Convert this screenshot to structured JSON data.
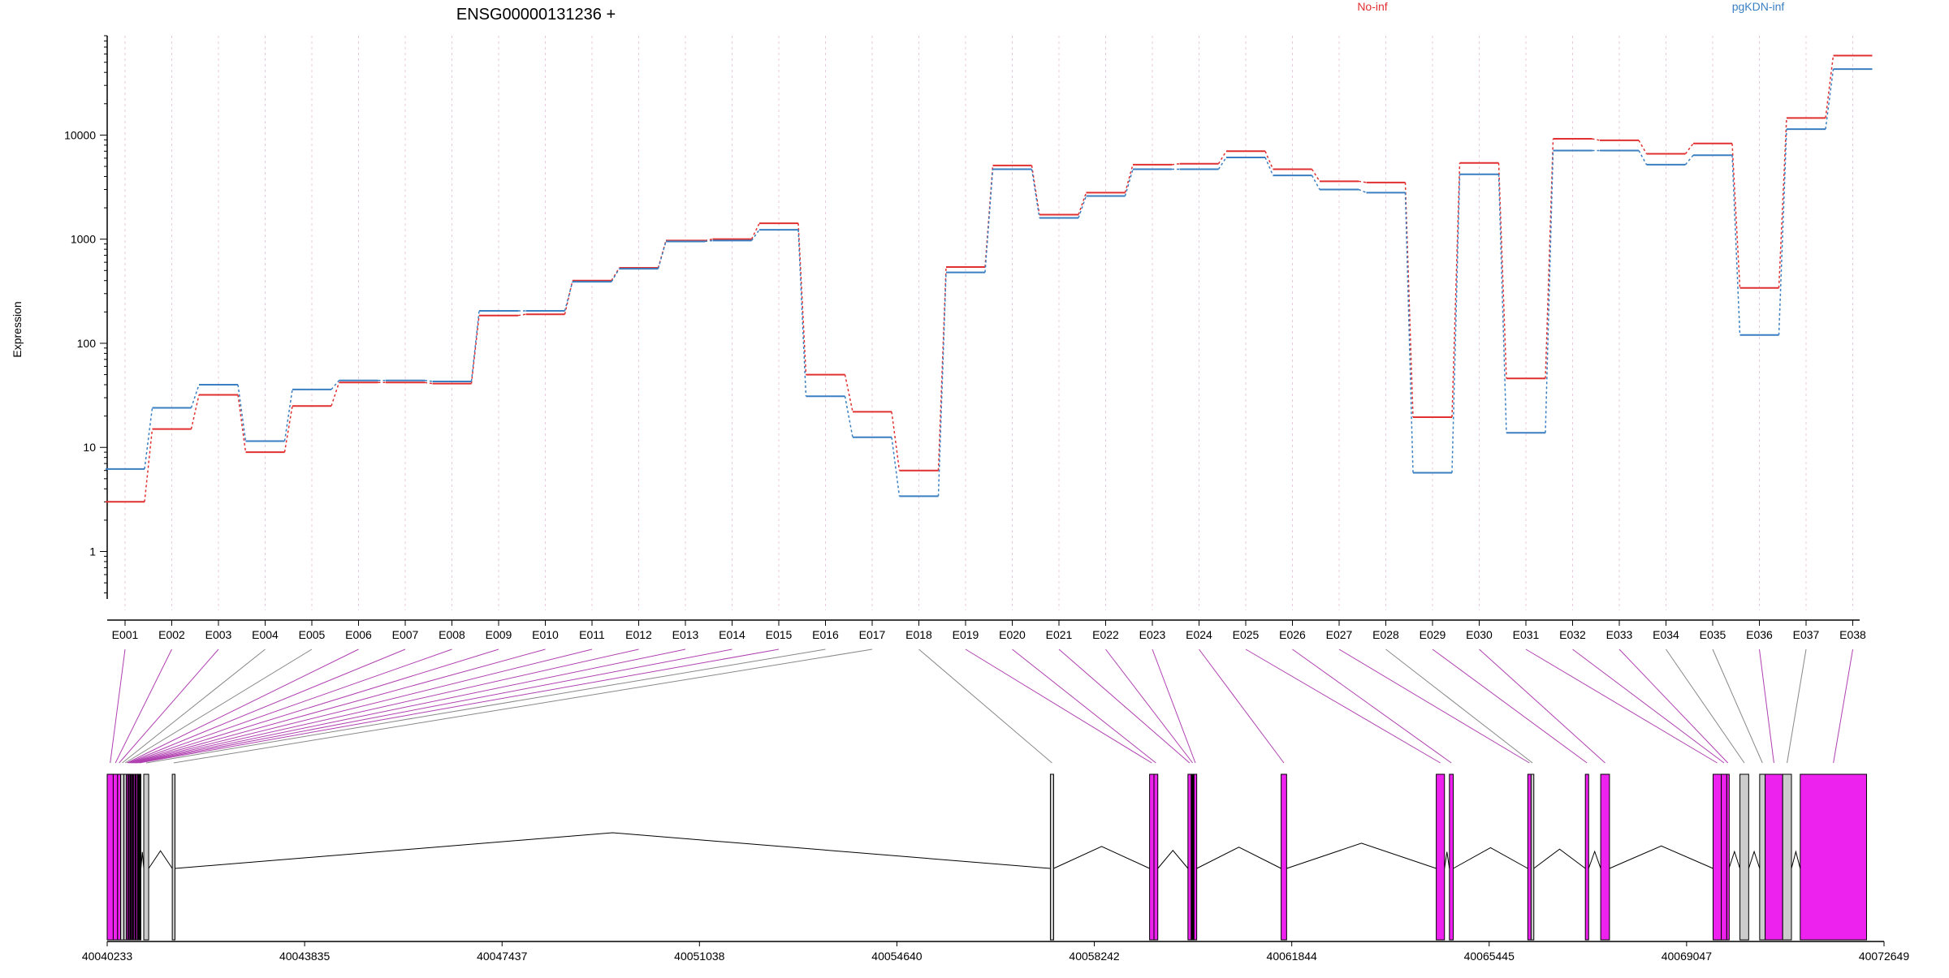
{
  "chart_data": [
    {
      "type": "line",
      "title": "ENSG00000131236 +",
      "xlabel": "",
      "ylabel": "Expression",
      "yscale": "log",
      "yticks": [
        1,
        10,
        100,
        1000,
        10000
      ],
      "ytick_labels": [
        "1",
        "10",
        "100",
        "1000",
        "10000"
      ],
      "ylim": [
        0.35,
        90000
      ],
      "grid": "vertical dotted lines at each exon",
      "legend_position": "top-right",
      "categories": [
        "E001",
        "E002",
        "E003",
        "E004",
        "E005",
        "E006",
        "E007",
        "E008",
        "E009",
        "E010",
        "E011",
        "E012",
        "E013",
        "E014",
        "E015",
        "E016",
        "E017",
        "E018",
        "E019",
        "E020",
        "E021",
        "E022",
        "E023",
        "E024",
        "E025",
        "E026",
        "E027",
        "E028",
        "E029",
        "E030",
        "E031",
        "E032",
        "E033",
        "E034",
        "E035",
        "E036",
        "E037",
        "E038"
      ],
      "series": [
        {
          "name": "No-inf",
          "color": "#e03030",
          "values": [
            3.0,
            15,
            32,
            9,
            25,
            42,
            42,
            41,
            185,
            190,
            400,
            530,
            970,
            1000,
            1420,
            50,
            22,
            6,
            540,
            5100,
            1720,
            2800,
            5200,
            5300,
            7000,
            4700,
            3600,
            3500,
            19.5,
            5400,
            46,
            9200,
            8900,
            6600,
            8300,
            340,
            14600,
            58000
          ]
        },
        {
          "name": "pgKDN-inf",
          "color": "#3a7fc1",
          "values": [
            6.2,
            24,
            40,
            11.5,
            36,
            44,
            44,
            43,
            205,
            205,
            390,
            520,
            950,
            970,
            1230,
            31,
            12.5,
            3.4,
            480,
            4700,
            1600,
            2600,
            4700,
            4700,
            6100,
            4100,
            3000,
            2800,
            5.7,
            4200,
            13.8,
            7100,
            7100,
            5200,
            6400,
            120,
            11400,
            43000
          ]
        }
      ]
    },
    {
      "type": "gene-model",
      "xlabel": "",
      "xticks": [
        40040233,
        40043835,
        40047437,
        40051038,
        40054640,
        40058242,
        40061844,
        40065445,
        40069047,
        40072649
      ],
      "xtick_labels": [
        "40040233",
        "40043835",
        "40047437",
        "40051038",
        "40054640",
        "40058242",
        "40061844",
        "40065445",
        "40069047",
        "40072649"
      ],
      "xlim": [
        40040233,
        40072649
      ],
      "colors": {
        "tested": "#ee22ee",
        "untested": "#cccccc",
        "highlight": "#000000"
      },
      "exons": [
        {
          "id": "E001",
          "start": 40040233,
          "end": 40040343,
          "state": "tested"
        },
        {
          "id": "E002",
          "start": 40040343,
          "end": 40040423,
          "state": "tested"
        },
        {
          "id": "E003",
          "start": 40040423,
          "end": 40040478,
          "state": "tested"
        },
        {
          "id": "E004",
          "start": 40040478,
          "end": 40040538,
          "state": "untested"
        },
        {
          "id": "E005",
          "start": 40040538,
          "end": 40040583,
          "state": "untested"
        },
        {
          "id": "E006",
          "start": 40040583,
          "end": 40040608,
          "state": "tested"
        },
        {
          "id": "E007",
          "start": 40040608,
          "end": 40040628,
          "state": "tested"
        },
        {
          "id": "E008",
          "start": 40040628,
          "end": 40040648,
          "state": "tested"
        },
        {
          "id": "E009",
          "start": 40040648,
          "end": 40040668,
          "state": "highlight"
        },
        {
          "id": "E010",
          "start": 40040668,
          "end": 40040688,
          "state": "tested"
        },
        {
          "id": "E011",
          "start": 40040688,
          "end": 40040713,
          "state": "highlight"
        },
        {
          "id": "E012",
          "start": 40040713,
          "end": 40040738,
          "state": "tested"
        },
        {
          "id": "E013",
          "start": 40040738,
          "end": 40040763,
          "state": "highlight"
        },
        {
          "id": "E014",
          "start": 40040763,
          "end": 40040788,
          "state": "tested"
        },
        {
          "id": "E015",
          "start": 40040788,
          "end": 40040848,
          "state": "highlight"
        },
        {
          "id": "E016",
          "start": 40040900,
          "end": 40040990,
          "state": "untested"
        },
        {
          "id": "E017",
          "start": 40041420,
          "end": 40041470,
          "state": "untested"
        },
        {
          "id": "E018",
          "start": 40057440,
          "end": 40057500,
          "state": "untested"
        },
        {
          "id": "E019",
          "start": 40059250,
          "end": 40059330,
          "state": "tested"
        },
        {
          "id": "E020",
          "start": 40059330,
          "end": 40059400,
          "state": "tested"
        },
        {
          "id": "E021",
          "start": 40059950,
          "end": 40060010,
          "state": "tested"
        },
        {
          "id": "E022",
          "start": 40060010,
          "end": 40060060,
          "state": "highlight"
        },
        {
          "id": "E023",
          "start": 40060060,
          "end": 40060110,
          "state": "tested"
        },
        {
          "id": "E024",
          "start": 40061650,
          "end": 40061750,
          "state": "tested"
        },
        {
          "id": "E025",
          "start": 40064480,
          "end": 40064630,
          "state": "tested"
        },
        {
          "id": "E026",
          "start": 40064720,
          "end": 40064790,
          "state": "tested"
        },
        {
          "id": "E027",
          "start": 40066150,
          "end": 40066210,
          "state": "tested"
        },
        {
          "id": "E028",
          "start": 40066210,
          "end": 40066260,
          "state": "untested"
        },
        {
          "id": "E029",
          "start": 40067200,
          "end": 40067260,
          "state": "tested"
        },
        {
          "id": "E030",
          "start": 40067480,
          "end": 40067640,
          "state": "tested"
        },
        {
          "id": "E031",
          "start": 40069530,
          "end": 40069680,
          "state": "tested"
        },
        {
          "id": "E032",
          "start": 40069680,
          "end": 40069780,
          "state": "tested"
        },
        {
          "id": "E033",
          "start": 40069780,
          "end": 40069820,
          "state": "tested"
        },
        {
          "id": "E034",
          "start": 40070020,
          "end": 40070180,
          "state": "untested"
        },
        {
          "id": "E035",
          "start": 40070380,
          "end": 40070480,
          "state": "untested"
        },
        {
          "id": "E036",
          "start": 40070480,
          "end": 40070800,
          "state": "tested"
        },
        {
          "id": "E037",
          "start": 40070800,
          "end": 40070960,
          "state": "untested"
        },
        {
          "id": "E038",
          "start": 40071120,
          "end": 40072330,
          "state": "tested"
        }
      ]
    }
  ]
}
